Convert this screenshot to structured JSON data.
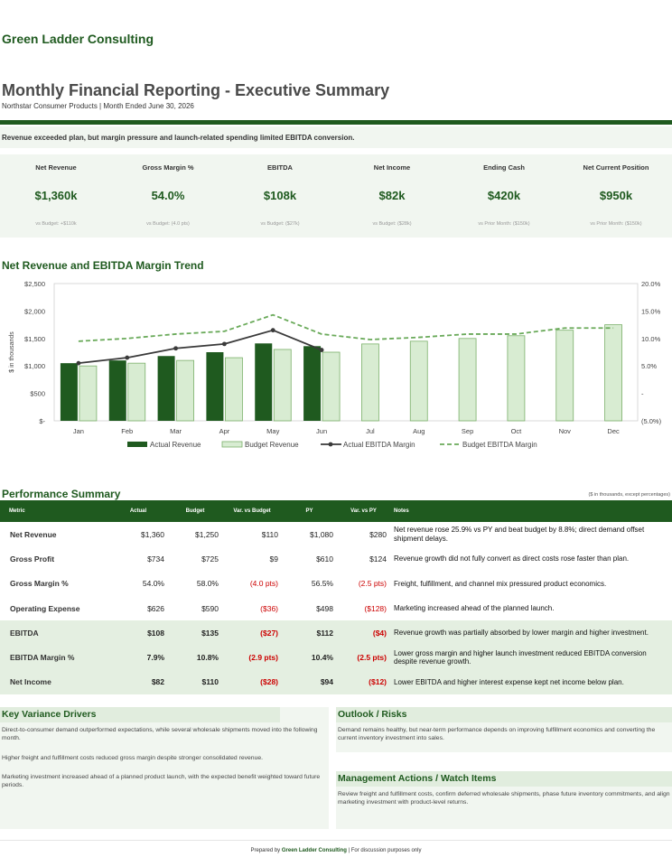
{
  "header": {
    "firm": "Green Ladder Consulting",
    "title": "Monthly Financial Reporting - Executive Summary",
    "subtitle": "Northstar Consumer Products  |  Month Ended June 30, 2026",
    "headline": "Revenue exceeded plan, but margin pressure and launch-related spending limited EBITDA conversion."
  },
  "kpis": [
    {
      "label": "Net Revenue",
      "value": "$1,360k",
      "compare": "vs Budget: +$110k"
    },
    {
      "label": "Gross Margin %",
      "value": "54.0%",
      "compare": "vs Budget: (4.0 pts)"
    },
    {
      "label": "EBITDA",
      "value": "$108k",
      "compare": "vs Budget: ($27k)"
    },
    {
      "label": "Net Income",
      "value": "$82k",
      "compare": "vs Budget: ($28k)"
    },
    {
      "label": "Ending Cash",
      "value": "$420k",
      "compare": "vs Prior Month: ($150k)"
    },
    {
      "label": "Net Current Position",
      "value": "$950k",
      "compare": "vs Prior Month: ($150k)"
    }
  ],
  "colors": {
    "brand": "#1f5a1f",
    "actual_bar": "#1f5a1f",
    "budget_bar": "#d8ecd2",
    "budget_bar_border": "#7bb06a",
    "actual_margin_line": "#3a3a3a",
    "budget_margin_line": "#6aaa5a",
    "negative": "#cc0000"
  },
  "chart_title": "Net Revenue and EBITDA Margin Trend",
  "chart_data": {
    "type": "bar",
    "categories": [
      "Jan",
      "Feb",
      "Mar",
      "Apr",
      "May",
      "Jun",
      "Jul",
      "Aug",
      "Sep",
      "Oct",
      "Nov",
      "Dec"
    ],
    "series": [
      {
        "name": "Actual Revenue",
        "type": "bar",
        "axis": "left",
        "values": [
          1050,
          1100,
          1180,
          1250,
          1410,
          1360,
          null,
          null,
          null,
          null,
          null,
          null
        ]
      },
      {
        "name": "Budget Revenue",
        "type": "bar",
        "axis": "left",
        "values": [
          1000,
          1050,
          1100,
          1150,
          1300,
          1250,
          1400,
          1450,
          1500,
          1550,
          1650,
          1750
        ]
      },
      {
        "name": "Actual EBITDA Margin",
        "type": "line",
        "axis": "right",
        "values": [
          5.5,
          6.5,
          8.2,
          9.0,
          11.5,
          7.9,
          null,
          null,
          null,
          null,
          null,
          null
        ]
      },
      {
        "name": "Budget EBITDA Margin",
        "type": "line",
        "axis": "right",
        "values": [
          9.5,
          10.0,
          10.8,
          11.3,
          14.3,
          10.8,
          9.8,
          10.2,
          10.8,
          10.8,
          11.9,
          11.9
        ]
      }
    ],
    "ylabel": "$ in thousands",
    "ylim": [
      0,
      2500
    ],
    "y_ticks": [
      "$-",
      "$500",
      "$1,000",
      "$1,500",
      "$2,000",
      "$2,500"
    ],
    "y2lim": [
      -5,
      20
    ],
    "y2_ticks": [
      "(5.0%)",
      "-",
      "5.0%",
      "10.0%",
      "15.0%",
      "20.0%"
    ],
    "grid": false,
    "legend": "bottom"
  },
  "performance": {
    "title": "Performance Summary",
    "note": "($ in thousands, except percentages)",
    "columns": [
      "Metric",
      "Actual",
      "Budget",
      "Var. vs Budget",
      "PY",
      "Var. vs PY",
      "Notes"
    ],
    "rows": [
      {
        "metric": "Net Revenue",
        "actual": "$1,360",
        "budget": "$1,250",
        "var_budget": "$110",
        "py": "$1,080",
        "var_py": "$280",
        "notes": "Net revenue rose 25.9% vs PY and beat budget by 8.8%; direct demand offset shipment delays.",
        "hl": false,
        "neg_b": false,
        "neg_p": false
      },
      {
        "metric": "Gross Profit",
        "actual": "$734",
        "budget": "$725",
        "var_budget": "$9",
        "py": "$610",
        "var_py": "$124",
        "notes": "Revenue growth did not fully convert as direct costs rose faster than plan.",
        "hl": false,
        "neg_b": false,
        "neg_p": false
      },
      {
        "metric": "Gross Margin %",
        "actual": "54.0%",
        "budget": "58.0%",
        "var_budget": "(4.0 pts)",
        "py": "56.5%",
        "var_py": "(2.5 pts)",
        "notes": "Freight, fulfillment, and channel mix pressured product economics.",
        "hl": false,
        "neg_b": true,
        "neg_p": true
      },
      {
        "metric": "Operating Expense",
        "actual": "$626",
        "budget": "$590",
        "var_budget": "($36)",
        "py": "$498",
        "var_py": "($128)",
        "notes": "Marketing increased ahead of the planned launch.",
        "hl": false,
        "neg_b": true,
        "neg_p": true
      },
      {
        "metric": "EBITDA",
        "actual": "$108",
        "budget": "$135",
        "var_budget": "($27)",
        "py": "$112",
        "var_py": "($4)",
        "notes": "Revenue growth was partially absorbed by lower margin and higher investment.",
        "hl": true,
        "neg_b": true,
        "neg_p": true
      },
      {
        "metric": "EBITDA Margin %",
        "actual": "7.9%",
        "budget": "10.8%",
        "var_budget": "(2.9 pts)",
        "py": "10.4%",
        "var_py": "(2.5 pts)",
        "notes": "Lower gross margin and higher launch investment reduced EBITDA conversion despite revenue growth.",
        "hl": true,
        "neg_b": true,
        "neg_p": true
      },
      {
        "metric": "Net Income",
        "actual": "$82",
        "budget": "$110",
        "var_budget": "($28)",
        "py": "$94",
        "var_py": "($12)",
        "notes": "Lower EBITDA and higher interest expense kept net income below plan.",
        "hl": true,
        "neg_b": true,
        "neg_p": true
      }
    ]
  },
  "drivers": {
    "title": "Key Variance Drivers",
    "items": [
      "Direct-to-consumer demand outperformed expectations, while several wholesale shipments moved into the following month.",
      "Higher freight and fulfillment costs reduced gross margin despite stronger consolidated revenue.",
      "Marketing investment increased ahead of a planned product launch, with the expected benefit weighted toward future periods."
    ]
  },
  "outlook": {
    "title": "Outlook / Risks",
    "text": "Demand remains healthy, but near-term performance depends on improving fulfillment economics and converting the current inventory investment into sales."
  },
  "actions": {
    "title": "Management Actions / Watch Items",
    "text": "Review freight and fulfillment costs, confirm deferred wholesale shipments, phase future inventory commitments, and align marketing investment with product-level returns."
  },
  "footer": {
    "prefix": "Prepared by ",
    "firm": "Green Ladder Consulting",
    "suffix": " | For discussion purposes only"
  }
}
